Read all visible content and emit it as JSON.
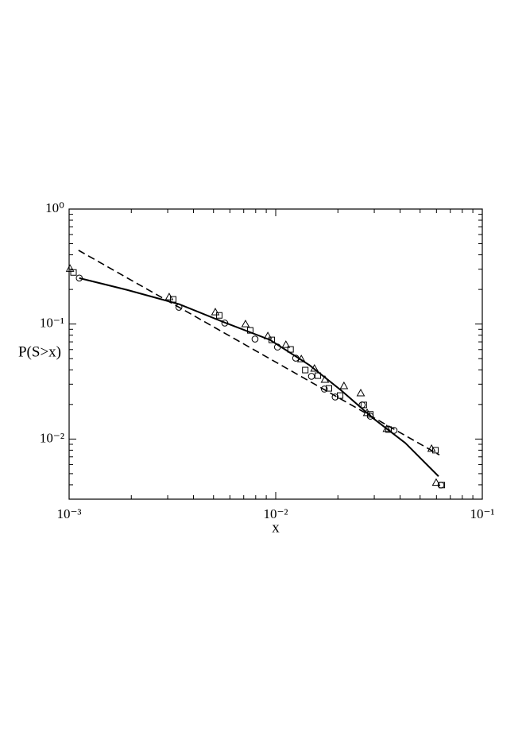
{
  "chart_data": {
    "type": "scatter",
    "x_label": "x",
    "y_label": "P(S>x)",
    "log_x": true,
    "log_y": true,
    "xlim": [
      0.001,
      0.1
    ],
    "ylim": [
      0.003,
      1
    ],
    "xticks": [
      {
        "value": 0.001,
        "label": "10⁻³"
      },
      {
        "value": 0.01,
        "label": "10⁻²"
      },
      {
        "value": 0.1,
        "label": "10⁻¹"
      }
    ],
    "yticks": [
      {
        "value": 0.01,
        "label": "10⁻²"
      },
      {
        "value": 0.1,
        "label": "10⁻¹"
      },
      {
        "value": 1,
        "label": "10⁰"
      }
    ],
    "x_minor_ticks": [
      0.002,
      0.003,
      0.004,
      0.005,
      0.006,
      0.007,
      0.008,
      0.009,
      0.02,
      0.03,
      0.04,
      0.05,
      0.06,
      0.07,
      0.08,
      0.09
    ],
    "y_minor_ticks": [
      0.004,
      0.005,
      0.006,
      0.007,
      0.008,
      0.009,
      0.02,
      0.03,
      0.04,
      0.05,
      0.06,
      0.07,
      0.08,
      0.09,
      0.2,
      0.3,
      0.4,
      0.5,
      0.6,
      0.7,
      0.8,
      0.9
    ],
    "series": [
      {
        "marker": "triangle",
        "color": "#000000",
        "x": [
          0.00101,
          0.00305,
          0.0051,
          0.00714,
          0.00916,
          0.0112,
          0.0133,
          0.0154,
          0.0173,
          0.0214,
          0.0258,
          0.0277,
          0.0345,
          0.0568,
          0.0598
        ],
        "values": [
          0.304,
          0.172,
          0.127,
          0.1,
          0.0788,
          0.0662,
          0.0497,
          0.0411,
          0.0329,
          0.029,
          0.0251,
          0.0169,
          0.0123,
          0.00826,
          0.00418
        ]
      },
      {
        "marker": "square",
        "color": "#000000",
        "x": [
          0.00105,
          0.00319,
          0.00533,
          0.00753,
          0.00957,
          0.0118,
          0.0139,
          0.016,
          0.0181,
          0.0205,
          0.0267,
          0.0287,
          0.0352,
          0.0593,
          0.0637
        ],
        "values": [
          0.281,
          0.164,
          0.119,
          0.0881,
          0.0728,
          0.0602,
          0.0398,
          0.0356,
          0.0276,
          0.0239,
          0.0198,
          0.0164,
          0.0121,
          0.008,
          0.00398
        ]
      },
      {
        "marker": "circle",
        "color": "#000000",
        "x": [
          0.00112,
          0.0034,
          0.00567,
          0.00794,
          0.0102,
          0.0125,
          0.0149,
          0.0172,
          0.0194,
          0.0262,
          0.0287,
          0.0374,
          0.0631
        ],
        "values": [
          0.251,
          0.14,
          0.102,
          0.074,
          0.0631,
          0.0505,
          0.0351,
          0.0272,
          0.0232,
          0.0198,
          0.0158,
          0.0119,
          0.00398
        ]
      },
      {
        "line": "solid",
        "color": "#000000",
        "x": [
          0.00112,
          0.00191,
          0.0034,
          0.00567,
          0.00939,
          0.0146,
          0.0208,
          0.0297,
          0.0424,
          0.0614
        ],
        "values": [
          0.251,
          0.198,
          0.149,
          0.103,
          0.0728,
          0.0438,
          0.0264,
          0.0151,
          0.00924,
          0.00474
        ]
      },
      {
        "line": "dashed",
        "color": "#000000",
        "x": [
          0.00111,
          0.062
        ],
        "values": [
          0.438,
          0.00728
        ]
      }
    ]
  }
}
